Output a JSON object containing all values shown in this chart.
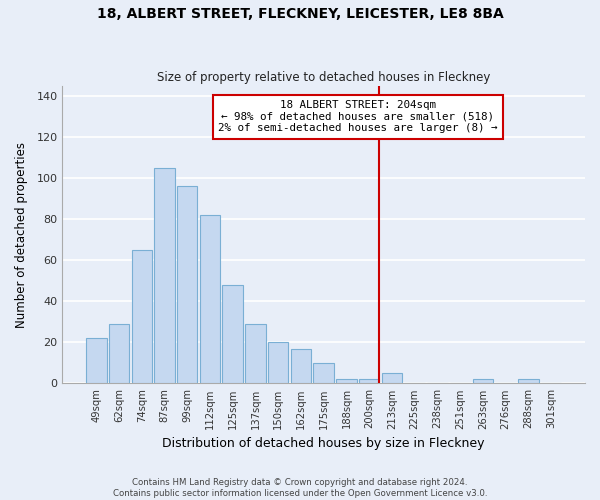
{
  "title": "18, ALBERT STREET, FLECKNEY, LEICESTER, LE8 8BA",
  "subtitle": "Size of property relative to detached houses in Fleckney",
  "xlabel": "Distribution of detached houses by size in Fleckney",
  "ylabel": "Number of detached properties",
  "bar_labels": [
    "49sqm",
    "62sqm",
    "74sqm",
    "87sqm",
    "99sqm",
    "112sqm",
    "125sqm",
    "137sqm",
    "150sqm",
    "162sqm",
    "175sqm",
    "188sqm",
    "200sqm",
    "213sqm",
    "225sqm",
    "238sqm",
    "251sqm",
    "263sqm",
    "276sqm",
    "288sqm",
    "301sqm"
  ],
  "bar_values": [
    22,
    29,
    65,
    105,
    96,
    82,
    48,
    29,
    20,
    17,
    10,
    2,
    2,
    5,
    0,
    0,
    0,
    2,
    0,
    2,
    0
  ],
  "bar_color": "#c5d8f0",
  "bar_edge_color": "#7aafd4",
  "ylim": [
    0,
    145
  ],
  "yticks": [
    0,
    20,
    40,
    60,
    80,
    100,
    120,
    140
  ],
  "vline_x": 12.42,
  "vline_color": "#cc0000",
  "annotation_title": "18 ALBERT STREET: 204sqm",
  "annotation_line1": "← 98% of detached houses are smaller (518)",
  "annotation_line2": "2% of semi-detached houses are larger (8) →",
  "footer1": "Contains HM Land Registry data © Crown copyright and database right 2024.",
  "footer2": "Contains public sector information licensed under the Open Government Licence v3.0.",
  "background_color": "#e8eef8",
  "grid_color": "#ffffff"
}
